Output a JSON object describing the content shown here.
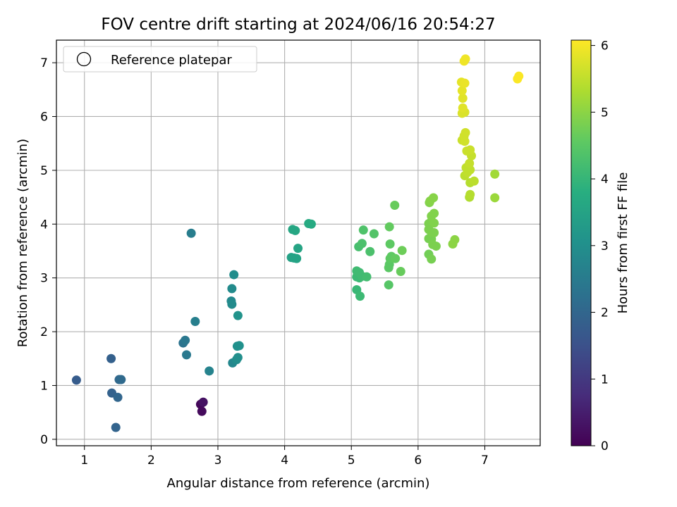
{
  "chart_data": {
    "type": "scatter",
    "title": "FOV centre drift starting at 2024/06/16 20:54:27",
    "xlabel": "Angular distance from reference (arcmin)",
    "ylabel": "Rotation from reference (arcmin)",
    "xlim": [
      0.58,
      7.83
    ],
    "ylim": [
      -0.12,
      7.42
    ],
    "xticks": [
      "1",
      "2",
      "3",
      "4",
      "5",
      "6",
      "7"
    ],
    "yticks": [
      "0",
      "1",
      "2",
      "3",
      "4",
      "5",
      "6",
      "7"
    ],
    "grid": true,
    "legend": {
      "placement": "top-left",
      "entries": [
        "Reference platepar"
      ]
    },
    "colorbar": {
      "label": "Hours from first FF file",
      "range": [
        0,
        6.08
      ],
      "ticks": [
        "0",
        "1",
        "2",
        "3",
        "4",
        "5",
        "6"
      ],
      "colormap": "viridis"
    },
    "points": [
      {
        "x": 2.74,
        "y": 0.65,
        "c": 0.1
      },
      {
        "x": 2.76,
        "y": 0.52,
        "c": 0.15
      },
      {
        "x": 2.78,
        "y": 0.69,
        "c": 0.3
      },
      {
        "x": 0.88,
        "y": 1.1,
        "c": 1.75
      },
      {
        "x": 1.4,
        "y": 1.5,
        "c": 1.85
      },
      {
        "x": 1.41,
        "y": 0.86,
        "c": 1.9
      },
      {
        "x": 1.47,
        "y": 0.22,
        "c": 1.95
      },
      {
        "x": 1.5,
        "y": 0.78,
        "c": 2.0
      },
      {
        "x": 1.52,
        "y": 1.11,
        "c": 2.05
      },
      {
        "x": 1.55,
        "y": 1.11,
        "c": 2.1
      },
      {
        "x": 2.48,
        "y": 1.79,
        "c": 2.3
      },
      {
        "x": 2.51,
        "y": 1.84,
        "c": 2.4
      },
      {
        "x": 2.53,
        "y": 1.57,
        "c": 2.45
      },
      {
        "x": 2.6,
        "y": 3.83,
        "c": 2.55
      },
      {
        "x": 2.66,
        "y": 2.19,
        "c": 2.6
      },
      {
        "x": 2.87,
        "y": 1.27,
        "c": 2.7
      },
      {
        "x": 3.22,
        "y": 1.42,
        "c": 2.8
      },
      {
        "x": 3.2,
        "y": 2.57,
        "c": 2.85
      },
      {
        "x": 3.21,
        "y": 2.51,
        "c": 2.9
      },
      {
        "x": 3.21,
        "y": 2.8,
        "c": 2.9
      },
      {
        "x": 3.24,
        "y": 3.06,
        "c": 2.95
      },
      {
        "x": 3.28,
        "y": 1.48,
        "c": 2.95
      },
      {
        "x": 3.3,
        "y": 1.52,
        "c": 3.0
      },
      {
        "x": 3.29,
        "y": 1.73,
        "c": 3.05
      },
      {
        "x": 3.32,
        "y": 1.74,
        "c": 3.05
      },
      {
        "x": 3.3,
        "y": 2.3,
        "c": 3.1
      },
      {
        "x": 4.1,
        "y": 3.38,
        "c": 3.45
      },
      {
        "x": 4.14,
        "y": 3.37,
        "c": 3.5
      },
      {
        "x": 4.18,
        "y": 3.36,
        "c": 3.5
      },
      {
        "x": 4.2,
        "y": 3.55,
        "c": 3.55
      },
      {
        "x": 4.12,
        "y": 3.9,
        "c": 3.6
      },
      {
        "x": 4.16,
        "y": 3.88,
        "c": 3.6
      },
      {
        "x": 4.36,
        "y": 4.01,
        "c": 3.7
      },
      {
        "x": 4.4,
        "y": 4.0,
        "c": 3.7
      },
      {
        "x": 5.08,
        "y": 2.78,
        "c": 4.05
      },
      {
        "x": 5.13,
        "y": 2.66,
        "c": 4.1
      },
      {
        "x": 5.08,
        "y": 3.02,
        "c": 4.1
      },
      {
        "x": 5.12,
        "y": 3.0,
        "c": 4.1
      },
      {
        "x": 5.16,
        "y": 3.03,
        "c": 4.15
      },
      {
        "x": 5.23,
        "y": 3.02,
        "c": 4.2
      },
      {
        "x": 5.08,
        "y": 3.13,
        "c": 4.15
      },
      {
        "x": 5.12,
        "y": 3.1,
        "c": 4.15
      },
      {
        "x": 5.11,
        "y": 3.58,
        "c": 4.25
      },
      {
        "x": 5.16,
        "y": 3.64,
        "c": 4.3
      },
      {
        "x": 5.28,
        "y": 3.49,
        "c": 4.3
      },
      {
        "x": 5.18,
        "y": 3.89,
        "c": 4.35
      },
      {
        "x": 5.34,
        "y": 3.82,
        "c": 4.4
      },
      {
        "x": 5.56,
        "y": 2.87,
        "c": 4.45
      },
      {
        "x": 5.56,
        "y": 3.19,
        "c": 4.5
      },
      {
        "x": 5.57,
        "y": 3.25,
        "c": 4.5
      },
      {
        "x": 5.58,
        "y": 3.36,
        "c": 4.55
      },
      {
        "x": 5.6,
        "y": 3.4,
        "c": 4.55
      },
      {
        "x": 5.66,
        "y": 3.36,
        "c": 4.6
      },
      {
        "x": 5.58,
        "y": 3.63,
        "c": 4.55
      },
      {
        "x": 5.57,
        "y": 3.95,
        "c": 4.6
      },
      {
        "x": 5.65,
        "y": 4.35,
        "c": 4.65
      },
      {
        "x": 5.74,
        "y": 3.12,
        "c": 4.65
      },
      {
        "x": 5.76,
        "y": 3.51,
        "c": 4.7
      },
      {
        "x": 6.16,
        "y": 3.44,
        "c": 4.75
      },
      {
        "x": 6.2,
        "y": 3.35,
        "c": 4.8
      },
      {
        "x": 6.16,
        "y": 3.73,
        "c": 4.8
      },
      {
        "x": 6.2,
        "y": 3.72,
        "c": 4.8
      },
      {
        "x": 6.22,
        "y": 3.62,
        "c": 4.85
      },
      {
        "x": 6.27,
        "y": 3.59,
        "c": 4.85
      },
      {
        "x": 6.16,
        "y": 3.9,
        "c": 4.85
      },
      {
        "x": 6.2,
        "y": 3.85,
        "c": 4.85
      },
      {
        "x": 6.24,
        "y": 3.84,
        "c": 4.85
      },
      {
        "x": 6.16,
        "y": 4.01,
        "c": 4.85
      },
      {
        "x": 6.2,
        "y": 4.05,
        "c": 4.85
      },
      {
        "x": 6.24,
        "y": 4.02,
        "c": 4.9
      },
      {
        "x": 6.2,
        "y": 4.15,
        "c": 4.9
      },
      {
        "x": 6.24,
        "y": 4.2,
        "c": 4.9
      },
      {
        "x": 6.17,
        "y": 4.4,
        "c": 4.9
      },
      {
        "x": 6.18,
        "y": 4.43,
        "c": 4.95
      },
      {
        "x": 6.23,
        "y": 4.49,
        "c": 4.95
      },
      {
        "x": 6.52,
        "y": 3.63,
        "c": 5.0
      },
      {
        "x": 6.55,
        "y": 3.71,
        "c": 5.0
      },
      {
        "x": 7.15,
        "y": 4.49,
        "c": 5.15
      },
      {
        "x": 7.15,
        "y": 4.93,
        "c": 5.2
      },
      {
        "x": 6.77,
        "y": 4.5,
        "c": 5.35
      },
      {
        "x": 6.78,
        "y": 4.55,
        "c": 5.4
      },
      {
        "x": 6.78,
        "y": 4.77,
        "c": 5.4
      },
      {
        "x": 6.84,
        "y": 4.8,
        "c": 5.45
      },
      {
        "x": 6.7,
        "y": 4.9,
        "c": 5.45
      },
      {
        "x": 6.74,
        "y": 4.96,
        "c": 5.5
      },
      {
        "x": 6.78,
        "y": 5.01,
        "c": 5.5
      },
      {
        "x": 6.72,
        "y": 5.05,
        "c": 5.5
      },
      {
        "x": 6.77,
        "y": 5.13,
        "c": 5.55
      },
      {
        "x": 6.8,
        "y": 5.27,
        "c": 5.55
      },
      {
        "x": 6.73,
        "y": 5.36,
        "c": 5.6
      },
      {
        "x": 6.78,
        "y": 5.38,
        "c": 5.6
      },
      {
        "x": 6.66,
        "y": 5.56,
        "c": 5.6
      },
      {
        "x": 6.7,
        "y": 5.54,
        "c": 5.65
      },
      {
        "x": 6.69,
        "y": 5.64,
        "c": 5.65
      },
      {
        "x": 6.71,
        "y": 5.7,
        "c": 5.65
      },
      {
        "x": 6.66,
        "y": 6.06,
        "c": 5.75
      },
      {
        "x": 6.7,
        "y": 6.08,
        "c": 5.75
      },
      {
        "x": 6.67,
        "y": 6.16,
        "c": 5.8
      },
      {
        "x": 6.67,
        "y": 6.34,
        "c": 5.8
      },
      {
        "x": 6.66,
        "y": 6.48,
        "c": 5.85
      },
      {
        "x": 6.65,
        "y": 6.64,
        "c": 5.85
      },
      {
        "x": 6.7,
        "y": 6.62,
        "c": 5.9
      },
      {
        "x": 6.69,
        "y": 7.03,
        "c": 5.95
      },
      {
        "x": 6.71,
        "y": 7.07,
        "c": 5.95
      },
      {
        "x": 7.49,
        "y": 6.7,
        "c": 6.05
      },
      {
        "x": 7.51,
        "y": 6.75,
        "c": 6.05
      }
    ]
  }
}
